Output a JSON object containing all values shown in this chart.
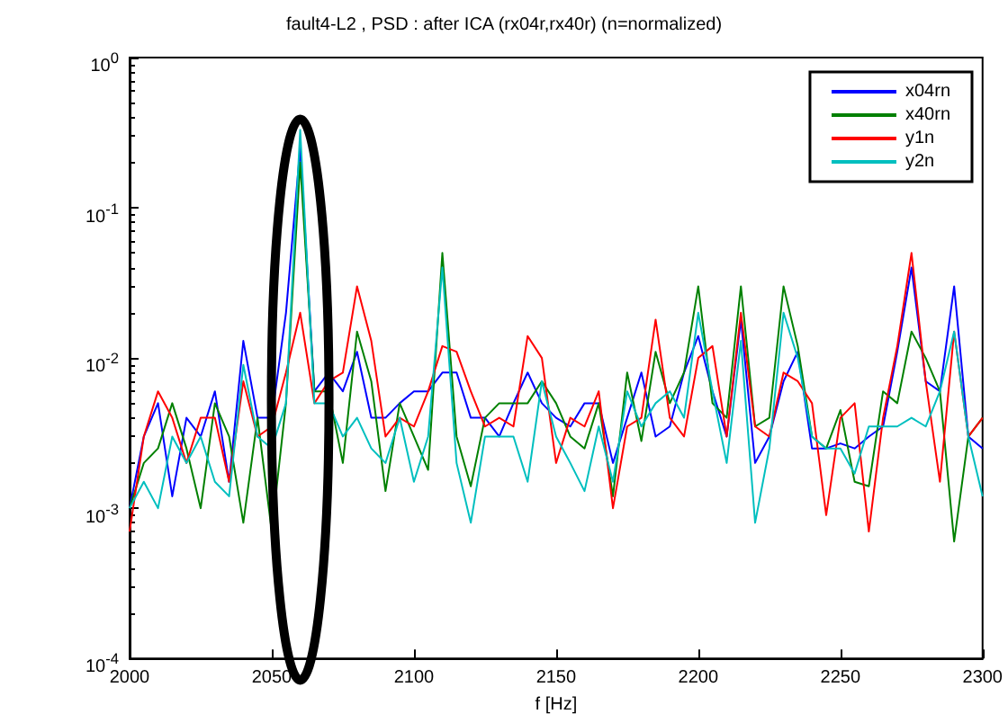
{
  "chart_data": {
    "type": "line",
    "title": "fault4-L2 , PSD : after ICA (rx04r,rx40r) (n=normalized)",
    "xlabel": "f [Hz]",
    "x": [
      2000,
      2005,
      2010,
      2015,
      2020,
      2025,
      2030,
      2035,
      2040,
      2045,
      2050,
      2055,
      2060,
      2065,
      2070,
      2075,
      2080,
      2085,
      2090,
      2095,
      2100,
      2105,
      2110,
      2115,
      2120,
      2125,
      2130,
      2135,
      2140,
      2145,
      2150,
      2155,
      2160,
      2165,
      2170,
      2175,
      2180,
      2185,
      2190,
      2195,
      2200,
      2205,
      2210,
      2215,
      2220,
      2225,
      2230,
      2235,
      2240,
      2245,
      2250,
      2255,
      2260,
      2265,
      2270,
      2275,
      2280,
      2285,
      2290,
      2295,
      2300
    ],
    "series": [
      {
        "name": "x04rn",
        "color": "#0000ff",
        "values": [
          0.001,
          0.003,
          0.005,
          0.0012,
          0.004,
          0.003,
          0.006,
          0.0015,
          0.013,
          0.004,
          0.004,
          0.02,
          0.25,
          0.006,
          0.008,
          0.006,
          0.011,
          0.004,
          0.004,
          0.005,
          0.006,
          0.006,
          0.008,
          0.008,
          0.004,
          0.004,
          0.003,
          0.005,
          0.008,
          0.005,
          0.004,
          0.0035,
          0.005,
          0.005,
          0.002,
          0.004,
          0.008,
          0.003,
          0.0035,
          0.008,
          0.014,
          0.006,
          0.003,
          0.018,
          0.002,
          0.003,
          0.007,
          0.011,
          0.0025,
          0.0025,
          0.0027,
          0.0025,
          0.003,
          0.0035,
          0.011,
          0.04,
          0.007,
          0.006,
          0.03,
          0.003,
          0.0025
        ]
      },
      {
        "name": "x40rn",
        "color": "#008000",
        "values": [
          0.001,
          0.002,
          0.0025,
          0.005,
          0.0025,
          0.001,
          0.005,
          0.003,
          0.0008,
          0.004,
          0.0007,
          0.005,
          0.2,
          0.006,
          0.006,
          0.002,
          0.015,
          0.007,
          0.0013,
          0.005,
          0.003,
          0.0018,
          0.05,
          0.003,
          0.0014,
          0.004,
          0.005,
          0.005,
          0.005,
          0.007,
          0.005,
          0.003,
          0.0025,
          0.005,
          0.0012,
          0.008,
          0.0028,
          0.011,
          0.005,
          0.008,
          0.03,
          0.005,
          0.004,
          0.03,
          0.0035,
          0.004,
          0.03,
          0.012,
          0.003,
          0.0025,
          0.0045,
          0.0015,
          0.0014,
          0.006,
          0.005,
          0.015,
          0.01,
          0.006,
          0.0006,
          0.003,
          0.004
        ]
      },
      {
        "name": "y1n",
        "color": "#ff0000",
        "values": [
          0.0007,
          0.003,
          0.006,
          0.004,
          0.002,
          0.004,
          0.004,
          0.0015,
          0.007,
          0.003,
          0.0035,
          0.008,
          0.02,
          0.005,
          0.007,
          0.008,
          0.03,
          0.013,
          0.003,
          0.004,
          0.0035,
          0.006,
          0.012,
          0.011,
          0.006,
          0.0035,
          0.004,
          0.0035,
          0.014,
          0.01,
          0.002,
          0.004,
          0.0035,
          0.006,
          0.001,
          0.0035,
          0.004,
          0.018,
          0.004,
          0.003,
          0.01,
          0.012,
          0.003,
          0.02,
          0.0035,
          0.003,
          0.008,
          0.007,
          0.005,
          0.0009,
          0.004,
          0.005,
          0.0007,
          0.004,
          0.012,
          0.05,
          0.007,
          0.0015,
          0.015,
          0.003,
          0.004
        ]
      },
      {
        "name": "y2n",
        "color": "#00bfbf",
        "values": [
          0.001,
          0.0015,
          0.001,
          0.003,
          0.002,
          0.003,
          0.0015,
          0.0012,
          0.009,
          0.003,
          0.0025,
          0.005,
          0.33,
          0.005,
          0.005,
          0.003,
          0.004,
          0.0025,
          0.002,
          0.004,
          0.0015,
          0.003,
          0.04,
          0.002,
          0.0008,
          0.003,
          0.003,
          0.003,
          0.0015,
          0.007,
          0.003,
          0.002,
          0.0013,
          0.0035,
          0.0015,
          0.006,
          0.0035,
          0.005,
          0.006,
          0.004,
          0.02,
          0.006,
          0.002,
          0.013,
          0.0008,
          0.0025,
          0.02,
          0.01,
          0.003,
          0.0025,
          0.0025,
          0.0017,
          0.0035,
          0.0035,
          0.0035,
          0.004,
          0.0035,
          0.006,
          0.015,
          0.003,
          0.0012
        ]
      }
    ],
    "xlim": [
      2000,
      2300
    ],
    "xticks": [
      2000,
      2050,
      2100,
      2150,
      2200,
      2250,
      2300
    ],
    "ylim": [
      0.0001,
      1
    ],
    "yticks": [
      {
        "value": 0.0001,
        "label": "10$^{-4}$"
      },
      {
        "value": 0.001,
        "label": "10$^{-3}$"
      },
      {
        "value": 0.01,
        "label": "10$^{-2}$"
      },
      {
        "value": 0.1,
        "label": "10$^{-1}$"
      },
      {
        "value": 1,
        "label": "10$^{0}$"
      }
    ],
    "log": "y",
    "grid": false,
    "legend": "top right",
    "marker": "none",
    "line_style": "solid"
  }
}
